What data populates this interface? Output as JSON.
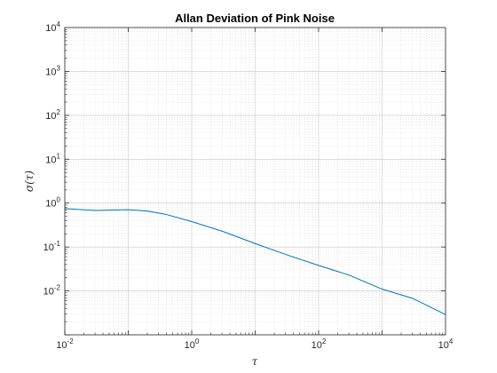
{
  "chart_data": {
    "type": "line",
    "title": "Allan Deviation of Pink Noise",
    "xlabel": "τ",
    "ylabel": "σ(τ)",
    "xscale": "log",
    "yscale": "log",
    "xlim": [
      0.01,
      10000
    ],
    "ylim": [
      0.001,
      10000
    ],
    "grid": "major and minor",
    "xticks": [
      {
        "base": "10",
        "exp": "-2",
        "value": 0.01
      },
      {
        "base": "10",
        "exp": "0",
        "value": 1
      },
      {
        "base": "10",
        "exp": "2",
        "value": 100
      },
      {
        "base": "10",
        "exp": "4",
        "value": 10000
      }
    ],
    "yticks": [
      {
        "base": "10",
        "exp": "-2",
        "value": 0.01
      },
      {
        "base": "10",
        "exp": "-1",
        "value": 0.1
      },
      {
        "base": "10",
        "exp": "0",
        "value": 1
      },
      {
        "base": "10",
        "exp": "1",
        "value": 10
      },
      {
        "base": "10",
        "exp": "2",
        "value": 100
      },
      {
        "base": "10",
        "exp": "3",
        "value": 1000
      },
      {
        "base": "10",
        "exp": "4",
        "value": 10000
      }
    ],
    "series": [
      {
        "color": "#0072BD",
        "x": [
          0.01,
          0.03,
          0.1,
          0.2,
          0.4,
          1,
          3,
          10,
          30,
          100,
          300,
          1000,
          3000,
          10000
        ],
        "y": [
          0.75,
          0.68,
          0.71,
          0.66,
          0.55,
          0.38,
          0.23,
          0.12,
          0.068,
          0.038,
          0.023,
          0.011,
          0.0068,
          0.0029
        ]
      }
    ]
  }
}
